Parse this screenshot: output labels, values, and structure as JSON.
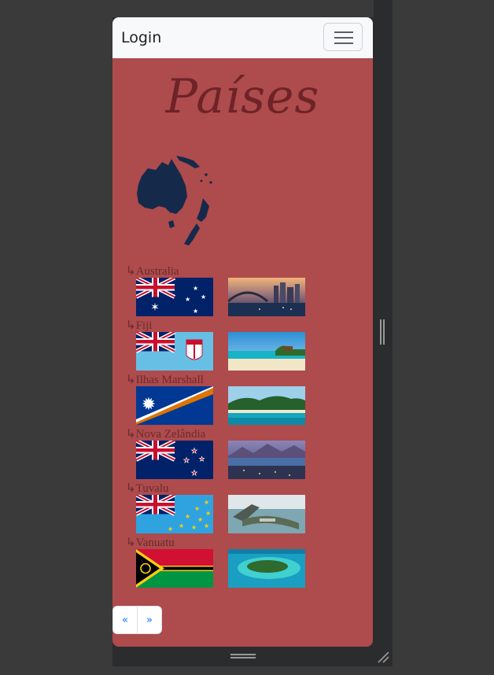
{
  "navbar": {
    "brand": "Login",
    "toggler_icon": "hamburger-icon"
  },
  "page_title": "Países",
  "region_map_icon": "oceania-map",
  "countries": [
    {
      "name": "Australia",
      "flag": "flag-australia",
      "photo": "photo-sydney-harbour"
    },
    {
      "name": "Fiji",
      "flag": "flag-fiji",
      "photo": "photo-fiji-beach"
    },
    {
      "name": "Ilhas Marshall",
      "flag": "flag-marshall-islands",
      "photo": "photo-marshall-atoll"
    },
    {
      "name": "Nova Zelândia",
      "flag": "flag-new-zealand",
      "photo": "photo-queenstown"
    },
    {
      "name": "Tuvalu",
      "flag": "flag-tuvalu",
      "photo": "photo-funafuti"
    },
    {
      "name": "Vanuatu",
      "flag": "flag-vanuatu",
      "photo": "photo-vanuatu-island"
    }
  ],
  "label_prefix": "↳",
  "pagination": {
    "prev": "«",
    "next": "»"
  },
  "colors": {
    "page_bg": "#ad4b4d",
    "title": "#6e2327",
    "navbar": "#f8f9fa",
    "link": "#0d6efd"
  }
}
